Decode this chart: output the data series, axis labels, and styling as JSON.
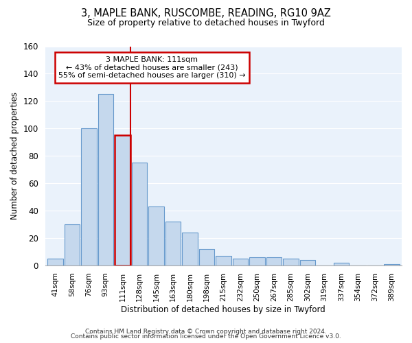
{
  "title": "3, MAPLE BANK, RUSCOMBE, READING, RG10 9AZ",
  "subtitle": "Size of property relative to detached houses in Twyford",
  "xlabel": "Distribution of detached houses by size in Twyford",
  "ylabel": "Number of detached properties",
  "bar_labels": [
    "41sqm",
    "58sqm",
    "76sqm",
    "93sqm",
    "111sqm",
    "128sqm",
    "145sqm",
    "163sqm",
    "180sqm",
    "198sqm",
    "215sqm",
    "232sqm",
    "250sqm",
    "267sqm",
    "285sqm",
    "302sqm",
    "319sqm",
    "337sqm",
    "354sqm",
    "372sqm",
    "389sqm"
  ],
  "bar_values": [
    5,
    30,
    100,
    125,
    95,
    75,
    43,
    32,
    24,
    12,
    7,
    5,
    6,
    6,
    5,
    4,
    0,
    2,
    0,
    0,
    1
  ],
  "bar_color": "#c5d8ed",
  "bar_edge_color": "#6699cc",
  "highlight_bar_index": 4,
  "highlight_edge_color": "#cc0000",
  "annotation_title": "3 MAPLE BANK: 111sqm",
  "annotation_line1": "← 43% of detached houses are smaller (243)",
  "annotation_line2": "55% of semi-detached houses are larger (310) →",
  "annotation_box_color": "#ffffff",
  "annotation_box_edge_color": "#cc0000",
  "ylim": [
    0,
    160
  ],
  "yticks": [
    0,
    20,
    40,
    60,
    80,
    100,
    120,
    140,
    160
  ],
  "footer1": "Contains HM Land Registry data © Crown copyright and database right 2024.",
  "footer2": "Contains public sector information licensed under the Open Government Licence v3.0.",
  "bg_color": "#ffffff",
  "plot_bg_color": "#eaf2fb",
  "grid_color": "#ffffff"
}
